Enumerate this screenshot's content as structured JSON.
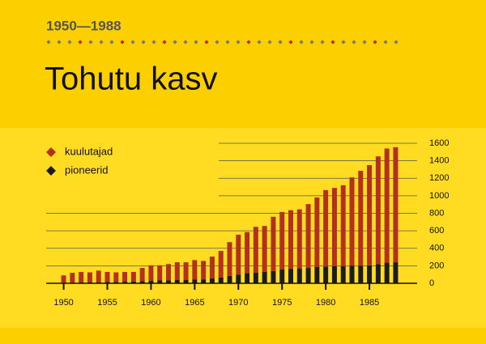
{
  "chart_data": {
    "type": "bar",
    "stacked": true,
    "subtitle": "1950—1988",
    "title": "Tohutu kasv",
    "x": [
      1950,
      1951,
      1952,
      1953,
      1954,
      1955,
      1956,
      1957,
      1958,
      1959,
      1960,
      1961,
      1962,
      1963,
      1964,
      1965,
      1966,
      1967,
      1968,
      1969,
      1970,
      1971,
      1972,
      1973,
      1974,
      1975,
      1976,
      1977,
      1978,
      1979,
      1980,
      1981,
      1982,
      1983,
      1984,
      1985,
      1986,
      1987,
      1988
    ],
    "series": [
      {
        "name": "kuulutajad",
        "color": "#b3301c",
        "values": [
          85,
          112,
          120,
          115,
          133,
          115,
          110,
          112,
          110,
          150,
          175,
          170,
          185,
          200,
          200,
          220,
          210,
          250,
          305,
          385,
          455,
          470,
          525,
          525,
          620,
          655,
          670,
          675,
          730,
          795,
          875,
          895,
          925,
          1010,
          1085,
          1145,
          1230,
          1305,
          1315
        ]
      },
      {
        "name": "pioneerid",
        "color": "#1c1c1c",
        "values": [
          5,
          8,
          10,
          10,
          12,
          15,
          15,
          18,
          20,
          25,
          30,
          35,
          35,
          40,
          40,
          45,
          45,
          55,
          65,
          85,
          100,
          115,
          120,
          130,
          140,
          160,
          165,
          170,
          175,
          185,
          190,
          195,
          195,
          200,
          200,
          205,
          220,
          235,
          240
        ]
      }
    ],
    "xlim": [
      1948,
      1990
    ],
    "xticks": [
      1950,
      1955,
      1960,
      1965,
      1970,
      1975,
      1980,
      1985
    ],
    "ylim": [
      0,
      1600
    ],
    "yticks": [
      0,
      200,
      400,
      600,
      800,
      1000,
      1200,
      1400,
      1600
    ],
    "grid": true,
    "legend": "upper left"
  }
}
